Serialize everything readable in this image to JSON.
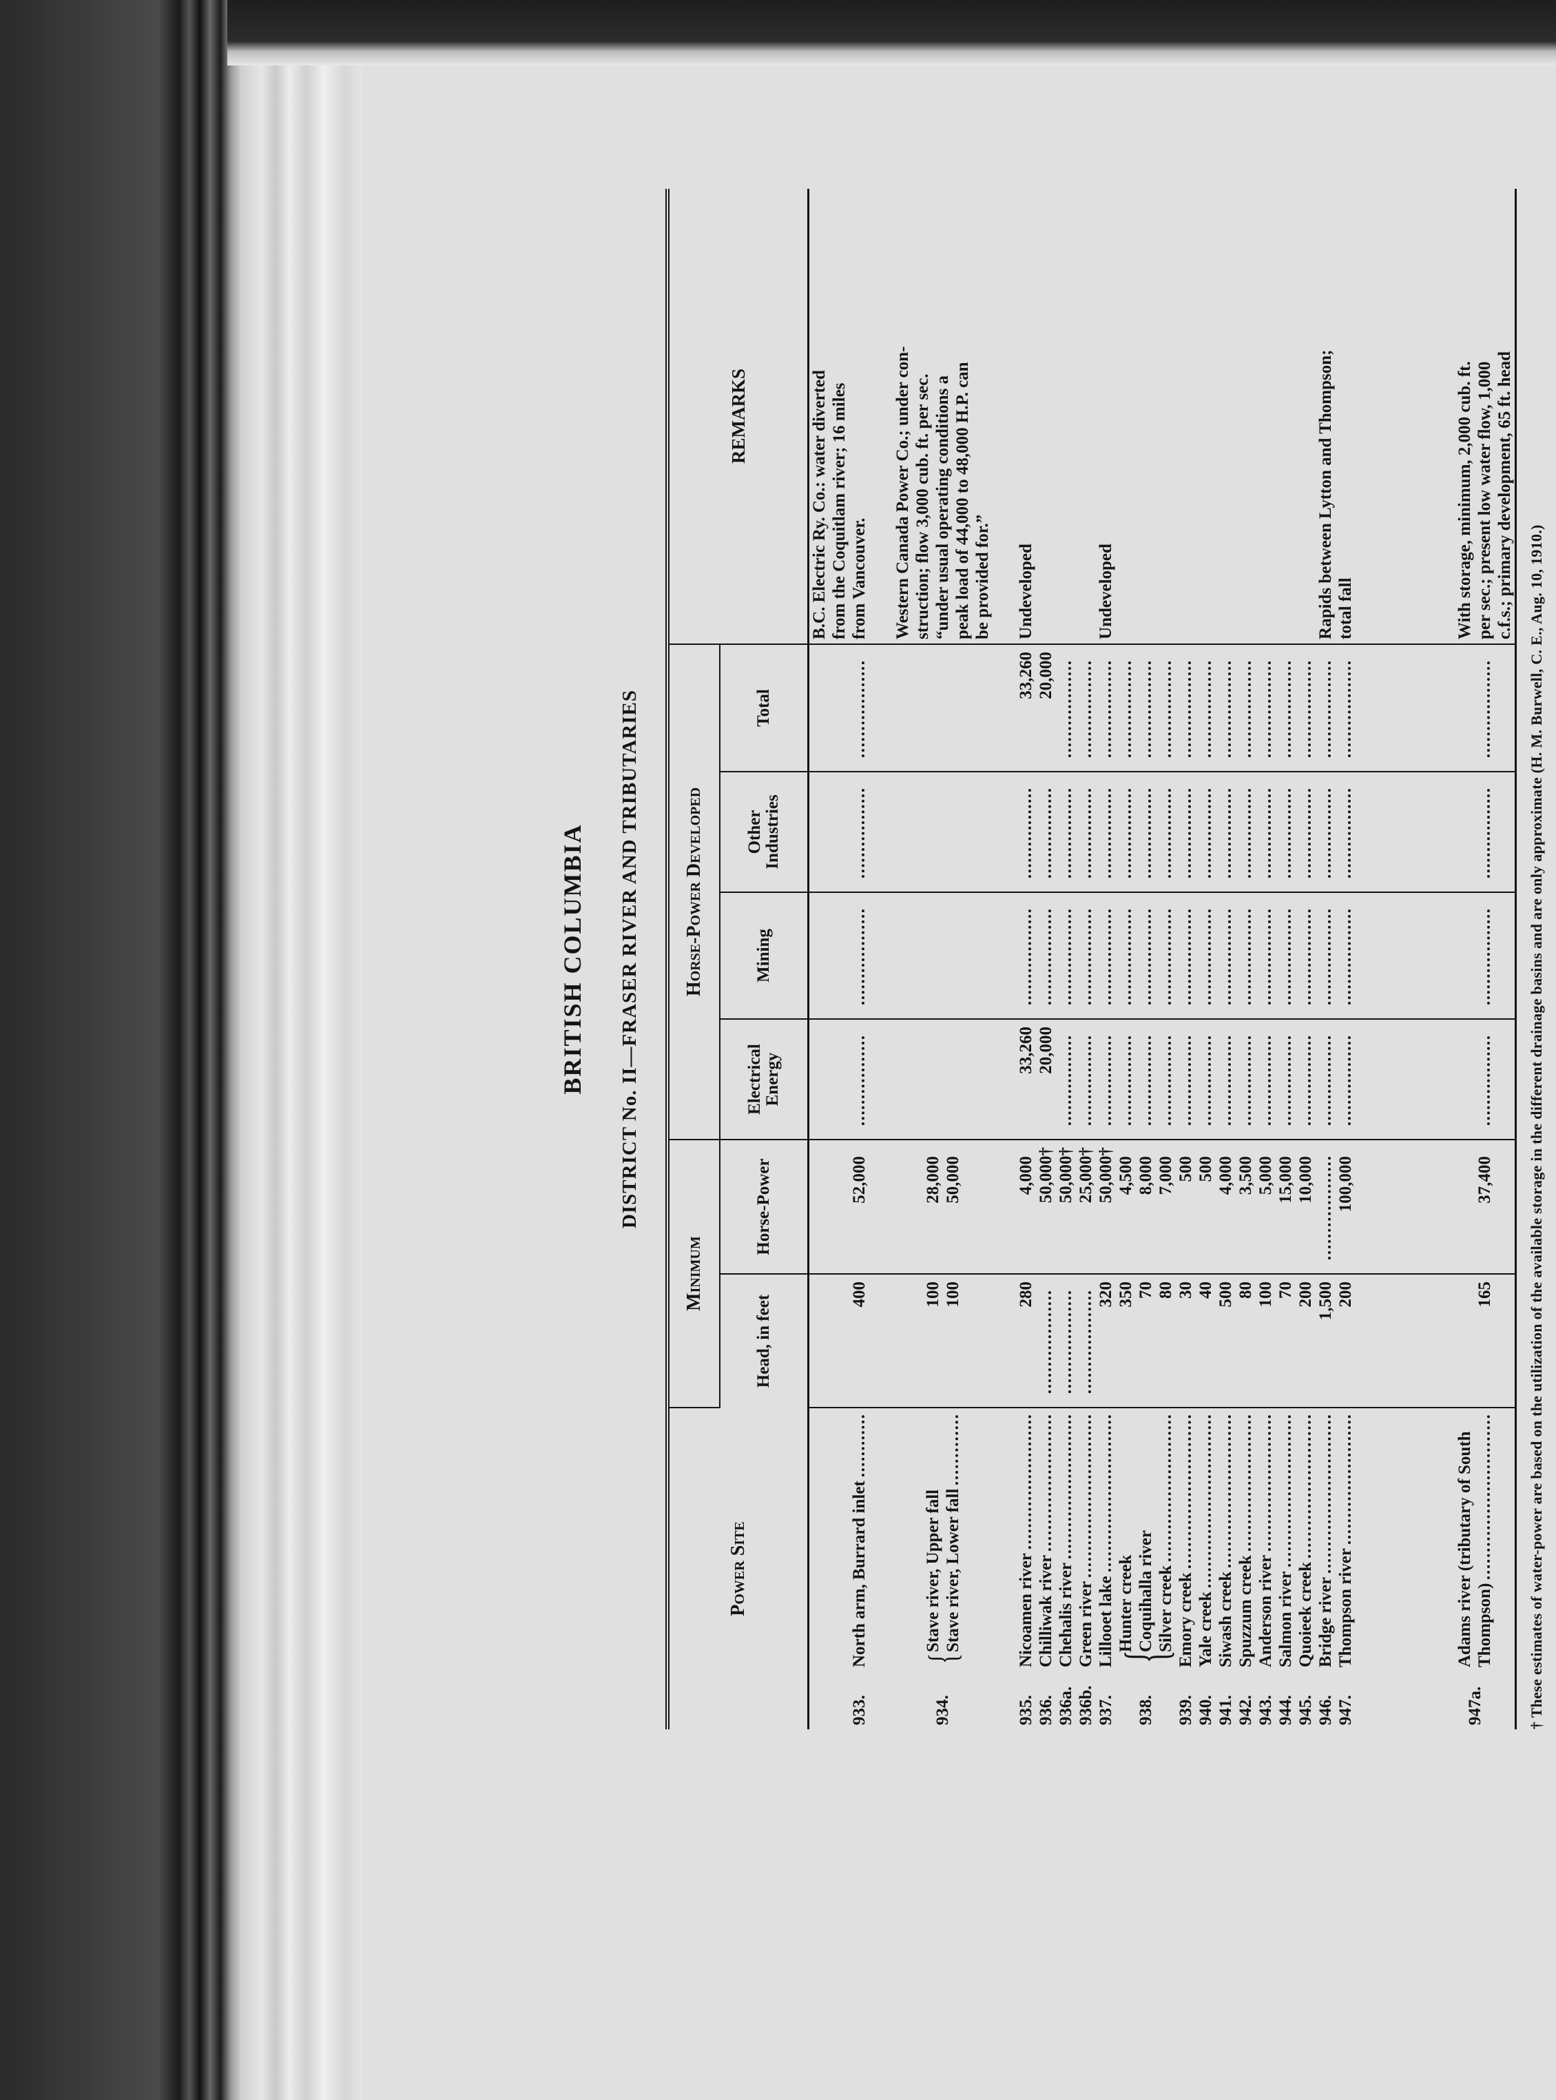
{
  "page": {
    "title": "BRITISH COLUMBIA",
    "subtitle": "DISTRICT No. II—FRASER RIVER AND TRIBUTARIES",
    "footnote": "† These estimates of water-power are based on the utilization of the available storage in the different drainage basins and are only approximate (H. M. Burwell, C. E., Aug. 10, 1910.)"
  },
  "headers": {
    "power_site": "Power Site",
    "minimum": "Minimum",
    "head": "Head, in feet",
    "horse_power": "Horse-Power",
    "developed": "Horse-Power Developed",
    "electrical": "Electrical Energy",
    "mining": "Mining",
    "other": "Other Industries",
    "total": "Total",
    "remarks": "REMARKS"
  },
  "rows": [
    {
      "num": "933.",
      "align": "bottom",
      "site": [
        "North arm, Burrard inlet"
      ],
      "head": [
        "400"
      ],
      "hp": [
        "52,000"
      ],
      "elec": [
        null
      ],
      "mining": [
        null
      ],
      "other": [
        null
      ],
      "total": [
        null
      ],
      "remarks": [
        "B.C. Electric Ry. Co.: water diverted",
        "from the Coquitlam river; 16 miles",
        "from Vancouver."
      ]
    },
    {
      "spacer": 34
    },
    {
      "num": "934.",
      "brace": true,
      "align": "mid",
      "site": [
        "Stave river, Upper fall",
        "Stave river, Lower fall"
      ],
      "head": [
        "100",
        "100"
      ],
      "hp": [
        "28,000",
        "50,000"
      ],
      "elec": [],
      "mining": [],
      "other": [],
      "total": [],
      "remarks": [
        "Western Canada Power Co.; under con-",
        "struction; flow 3,000 cub. ft. per sec.",
        "“under usual operating conditions a",
        "peak load of 44,000 to 48,000 H.P. can",
        "be provided for.”"
      ]
    },
    {
      "spacer": 34
    },
    {
      "num": "935.",
      "site": [
        "Nicoamen river"
      ],
      "head": [
        "280"
      ],
      "hp": [
        "4,000"
      ],
      "elec": [
        "33,260"
      ],
      "mining": [
        null
      ],
      "other": [
        null
      ],
      "total": [
        "33,260"
      ],
      "remarks": [
        "Undeveloped"
      ]
    },
    {
      "num": "936.",
      "site": [
        "Chilliwak river"
      ],
      "head": [
        null
      ],
      "hp": [
        "50,000†"
      ],
      "elec": [
        "20,000"
      ],
      "mining": [
        null
      ],
      "other": [
        null
      ],
      "total": [
        "20,000"
      ],
      "remarks": []
    },
    {
      "num": "936a.",
      "site": [
        "Chehalis river"
      ],
      "head": [
        null
      ],
      "hp": [
        "50,000†"
      ],
      "elec": [
        null
      ],
      "mining": [
        null
      ],
      "other": [
        null
      ],
      "total": [
        null
      ],
      "remarks": []
    },
    {
      "num": "936b.",
      "site": [
        "Green river"
      ],
      "head": [
        null
      ],
      "hp": [
        "25,000†"
      ],
      "elec": [
        null
      ],
      "mining": [
        null
      ],
      "other": [
        null
      ],
      "total": [
        null
      ],
      "remarks": []
    },
    {
      "num": "937.",
      "site": [
        "Lillooet lake"
      ],
      "head": [
        "320"
      ],
      "hp": [
        "50,000†"
      ],
      "elec": [
        null
      ],
      "mining": [
        null
      ],
      "other": [
        null
      ],
      "total": [
        null
      ],
      "remarks": [
        "Undeveloped"
      ]
    },
    {
      "num": "938.",
      "brace": true,
      "site": [
        "Hunter creek",
        "Coquihalla river",
        "Silver creek"
      ],
      "head": [
        "350",
        "70",
        "80"
      ],
      "hp": [
        "4,500",
        "8,000",
        "7,000"
      ],
      "elec": [
        null,
        null,
        null
      ],
      "mining": [
        null,
        null,
        null
      ],
      "other": [
        null,
        null,
        null
      ],
      "total": [
        null,
        null,
        null
      ],
      "remarks": []
    },
    {
      "num": "939.",
      "site": [
        "Emory creek"
      ],
      "head": [
        "30"
      ],
      "hp": [
        "500"
      ],
      "elec": [
        null
      ],
      "mining": [
        null
      ],
      "other": [
        null
      ],
      "total": [
        null
      ],
      "remarks": []
    },
    {
      "num": "940.",
      "site": [
        "Yale creek"
      ],
      "head": [
        "40"
      ],
      "hp": [
        "500"
      ],
      "elec": [
        null
      ],
      "mining": [
        null
      ],
      "other": [
        null
      ],
      "total": [
        null
      ],
      "remarks": []
    },
    {
      "num": "941.",
      "site": [
        "Siwash creek"
      ],
      "head": [
        "500"
      ],
      "hp": [
        "4,000"
      ],
      "elec": [
        null
      ],
      "mining": [
        null
      ],
      "other": [
        null
      ],
      "total": [
        null
      ],
      "remarks": []
    },
    {
      "num": "942.",
      "site": [
        "Spuzzum creek"
      ],
      "head": [
        "80"
      ],
      "hp": [
        "3,500"
      ],
      "elec": [
        null
      ],
      "mining": [
        null
      ],
      "other": [
        null
      ],
      "total": [
        null
      ],
      "remarks": []
    },
    {
      "num": "943.",
      "site": [
        "Anderson river"
      ],
      "head": [
        "100"
      ],
      "hp": [
        "5,000"
      ],
      "elec": [
        null
      ],
      "mining": [
        null
      ],
      "other": [
        null
      ],
      "total": [
        null
      ],
      "remarks": []
    },
    {
      "num": "944.",
      "site": [
        "Salmon river"
      ],
      "head": [
        "70"
      ],
      "hp": [
        "15,000"
      ],
      "elec": [
        null
      ],
      "mining": [
        null
      ],
      "other": [
        null
      ],
      "total": [
        null
      ],
      "remarks": []
    },
    {
      "num": "945.",
      "site": [
        "Quoieek creek"
      ],
      "head": [
        "200"
      ],
      "hp": [
        "10,000"
      ],
      "elec": [
        null
      ],
      "mining": [
        null
      ],
      "other": [
        null
      ],
      "total": [
        null
      ],
      "remarks": []
    },
    {
      "num": "946.",
      "site": [
        "Bridge river"
      ],
      "head": [
        "1,500"
      ],
      "hp": [
        null
      ],
      "elec": [
        null
      ],
      "mining": [
        null
      ],
      "other": [
        null
      ],
      "total": [
        null
      ],
      "remarks": [
        "Rapids between Lytton and Thompson;"
      ]
    },
    {
      "num": "947.",
      "site": [
        "Thompson river"
      ],
      "head": [
        "200"
      ],
      "hp": [
        "100,000"
      ],
      "elec": [
        null
      ],
      "mining": [
        null
      ],
      "other": [
        null
      ],
      "total": [
        null
      ],
      "remarks": [
        "total fall"
      ]
    },
    {
      "spacer": 144
    },
    {
      "num": "947a.",
      "site": [
        "Adams river (tributary of South",
        "Thompson)"
      ],
      "head": [
        "",
        "165"
      ],
      "hp": [
        "",
        "37,400"
      ],
      "elec": [
        "",
        null
      ],
      "mining": [
        "",
        null
      ],
      "other": [
        "",
        null
      ],
      "total": [
        "",
        null
      ],
      "remarks": [
        "With storage, minimum, 2,000 cub. ft.",
        "per sec.; present low water flow, 1,000",
        "c.f.s.; primary development, 65 ft. head"
      ]
    }
  ]
}
